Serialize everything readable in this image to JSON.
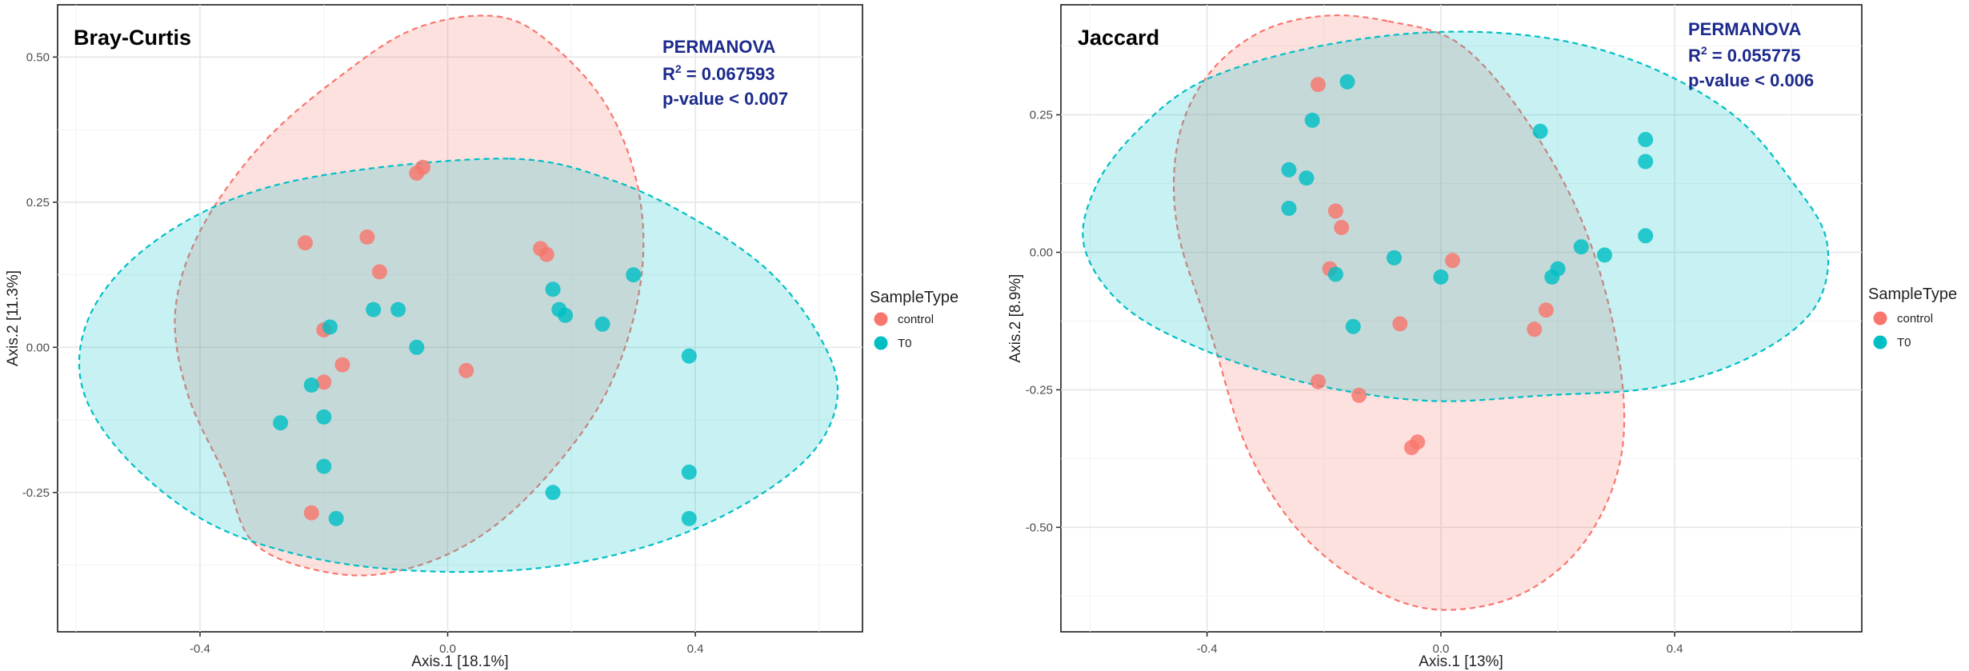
{
  "colors": {
    "control": "#f8766d",
    "T0": "#00bfc4",
    "stats_text": "#1c2a8c"
  },
  "chart_data": [
    {
      "type": "scatter",
      "title": "Bray-Curtis",
      "xlabel": "Axis.1   [18.1%]",
      "ylabel": "Axis.2   [11.3%]",
      "xlim": [
        -0.63,
        0.67
      ],
      "ylim": [
        -0.49,
        0.59
      ],
      "xticks": [
        -0.4,
        0.0,
        0.4
      ],
      "xtick_labels": [
        "-0.4",
        "0.0",
        "0.4"
      ],
      "yticks": [
        -0.25,
        0.0,
        0.25,
        0.5
      ],
      "ytick_labels": [
        "-0.25",
        "0.00",
        "0.25",
        "0.50"
      ],
      "grid": true,
      "stats": {
        "heading": "PERMANOVA",
        "r2_prefix": "R",
        "r2_sup": "2",
        "r2_value": " = 0.067593",
        "pvalue": "p-value < 0.007"
      },
      "legend": {
        "title": "SampleType",
        "position": "right",
        "entries": [
          {
            "label": "control",
            "color": "#f8766d"
          },
          {
            "label": "T0",
            "color": "#00bfc4"
          }
        ]
      },
      "ellipses": [
        {
          "name": "control",
          "color": "#f8766d",
          "fill_opacity": 0.22,
          "polygon": [
            [
              0.08,
              0.57
            ],
            [
              0.17,
              0.52
            ],
            [
              0.26,
              0.41
            ],
            [
              0.31,
              0.26
            ],
            [
              0.31,
              0.1
            ],
            [
              0.26,
              -0.07
            ],
            [
              0.17,
              -0.21
            ],
            [
              0.06,
              -0.32
            ],
            [
              -0.06,
              -0.38
            ],
            [
              -0.18,
              -0.39
            ],
            [
              -0.31,
              -0.34
            ],
            [
              -0.36,
              -0.22
            ],
            [
              -0.42,
              -0.08
            ],
            [
              -0.44,
              0.06
            ],
            [
              -0.4,
              0.2
            ],
            [
              -0.3,
              0.35
            ],
            [
              -0.17,
              0.47
            ],
            [
              -0.05,
              0.55
            ]
          ]
        },
        {
          "name": "T0",
          "color": "#00bfc4",
          "fill_opacity": 0.22,
          "polygon": [
            [
              0.1,
              0.325
            ],
            [
              0.26,
              0.29
            ],
            [
              0.4,
              0.22
            ],
            [
              0.52,
              0.13
            ],
            [
              0.6,
              0.02
            ],
            [
              0.63,
              -0.08
            ],
            [
              0.59,
              -0.18
            ],
            [
              0.48,
              -0.27
            ],
            [
              0.33,
              -0.34
            ],
            [
              0.15,
              -0.38
            ],
            [
              -0.05,
              -0.385
            ],
            [
              -0.23,
              -0.36
            ],
            [
              -0.39,
              -0.3
            ],
            [
              -0.52,
              -0.19
            ],
            [
              -0.59,
              -0.07
            ],
            [
              -0.58,
              0.05
            ],
            [
              -0.5,
              0.16
            ],
            [
              -0.36,
              0.25
            ],
            [
              -0.18,
              0.3
            ]
          ]
        }
      ],
      "series": [
        {
          "name": "control",
          "color": "#f8766d",
          "points": [
            [
              -0.04,
              0.31
            ],
            [
              -0.05,
              0.3
            ],
            [
              -0.23,
              0.18
            ],
            [
              -0.13,
              0.19
            ],
            [
              -0.11,
              0.13
            ],
            [
              0.15,
              0.17
            ],
            [
              0.16,
              0.16
            ],
            [
              -0.2,
              0.03
            ],
            [
              -0.17,
              -0.03
            ],
            [
              -0.2,
              -0.06
            ],
            [
              0.03,
              -0.04
            ],
            [
              -0.22,
              -0.285
            ]
          ]
        },
        {
          "name": "T0",
          "color": "#00bfc4",
          "points": [
            [
              0.3,
              0.125
            ],
            [
              0.17,
              0.1
            ],
            [
              0.18,
              0.065
            ],
            [
              0.19,
              0.055
            ],
            [
              0.25,
              0.04
            ],
            [
              -0.12,
              0.065
            ],
            [
              -0.08,
              0.065
            ],
            [
              -0.19,
              0.035
            ],
            [
              -0.05,
              0.0
            ],
            [
              0.39,
              -0.015
            ],
            [
              -0.22,
              -0.065
            ],
            [
              -0.2,
              -0.12
            ],
            [
              -0.27,
              -0.13
            ],
            [
              -0.2,
              -0.205
            ],
            [
              0.39,
              -0.215
            ],
            [
              0.17,
              -0.25
            ],
            [
              -0.18,
              -0.295
            ],
            [
              0.39,
              -0.295
            ]
          ]
        }
      ]
    },
    {
      "type": "scatter",
      "title": "Jaccard",
      "xlabel": "Axis.1   [13%]",
      "ylabel": "Axis.2   [8.9%]",
      "xlim": [
        -0.65,
        0.72
      ],
      "ylim": [
        -0.69,
        0.45
      ],
      "xticks": [
        -0.4,
        0.0,
        0.4
      ],
      "xtick_labels": [
        "-0.4",
        "0.0",
        "0.4"
      ],
      "yticks": [
        -0.5,
        -0.25,
        0.0,
        0.25
      ],
      "ytick_labels": [
        "-0.50",
        "-0.25",
        "0.00",
        "0.25"
      ],
      "grid": true,
      "stats": {
        "heading": "PERMANOVA",
        "r2_prefix": "R",
        "r2_sup": "2",
        "r2_value": " = 0.055775",
        "pvalue": "p-value < 0.006"
      },
      "legend": {
        "title": "SampleType",
        "position": "right",
        "entries": [
          {
            "label": "control",
            "color": "#f8766d"
          },
          {
            "label": "T0",
            "color": "#00bfc4"
          }
        ]
      },
      "ellipses": [
        {
          "name": "control",
          "color": "#f8766d",
          "fill_opacity": 0.22,
          "polygon": [
            [
              -0.09,
              0.42
            ],
            [
              0.03,
              0.38
            ],
            [
              0.14,
              0.25
            ],
            [
              0.24,
              0.06
            ],
            [
              0.3,
              -0.16
            ],
            [
              0.31,
              -0.36
            ],
            [
              0.25,
              -0.52
            ],
            [
              0.14,
              -0.62
            ],
            [
              0.0,
              -0.65
            ],
            [
              -0.12,
              -0.61
            ],
            [
              -0.24,
              -0.51
            ],
            [
              -0.33,
              -0.36
            ],
            [
              -0.39,
              -0.16
            ],
            [
              -0.45,
              0.04
            ],
            [
              -0.45,
              0.2
            ],
            [
              -0.4,
              0.32
            ],
            [
              -0.31,
              0.4
            ],
            [
              -0.2,
              0.43
            ]
          ]
        },
        {
          "name": "T0",
          "color": "#00bfc4",
          "fill_opacity": 0.22,
          "polygon": [
            [
              -0.02,
              0.4
            ],
            [
              0.18,
              0.39
            ],
            [
              0.35,
              0.34
            ],
            [
              0.5,
              0.25
            ],
            [
              0.6,
              0.13
            ],
            [
              0.66,
              0.02
            ],
            [
              0.64,
              -0.1
            ],
            [
              0.53,
              -0.19
            ],
            [
              0.37,
              -0.245
            ],
            [
              0.18,
              -0.26
            ],
            [
              -0.02,
              -0.27
            ],
            [
              -0.22,
              -0.24
            ],
            [
              -0.4,
              -0.18
            ],
            [
              -0.54,
              -0.1
            ],
            [
              -0.61,
              0.01
            ],
            [
              -0.59,
              0.12
            ],
            [
              -0.52,
              0.22
            ],
            [
              -0.41,
              0.31
            ],
            [
              -0.23,
              0.37
            ]
          ]
        }
      ],
      "series": [
        {
          "name": "control",
          "color": "#f8766d",
          "points": [
            [
              -0.21,
              0.305
            ],
            [
              -0.18,
              0.075
            ],
            [
              -0.17,
              0.045
            ],
            [
              -0.19,
              -0.03
            ],
            [
              -0.07,
              -0.13
            ],
            [
              0.02,
              -0.015
            ],
            [
              0.16,
              -0.14
            ],
            [
              0.18,
              -0.105
            ],
            [
              -0.21,
              -0.235
            ],
            [
              -0.14,
              -0.26
            ],
            [
              -0.05,
              -0.355
            ],
            [
              -0.04,
              -0.345
            ]
          ]
        },
        {
          "name": "T0",
          "color": "#00bfc4",
          "points": [
            [
              -0.16,
              0.31
            ],
            [
              -0.22,
              0.24
            ],
            [
              -0.26,
              0.15
            ],
            [
              -0.23,
              0.135
            ],
            [
              -0.26,
              0.08
            ],
            [
              0.17,
              0.22
            ],
            [
              0.35,
              0.205
            ],
            [
              0.35,
              0.165
            ],
            [
              0.35,
              0.03
            ],
            [
              0.24,
              0.01
            ],
            [
              0.28,
              -0.005
            ],
            [
              -0.08,
              -0.01
            ],
            [
              0.2,
              -0.03
            ],
            [
              0.19,
              -0.045
            ],
            [
              -0.18,
              -0.04
            ],
            [
              0.0,
              -0.045
            ],
            [
              -0.15,
              -0.135
            ]
          ]
        }
      ]
    }
  ]
}
